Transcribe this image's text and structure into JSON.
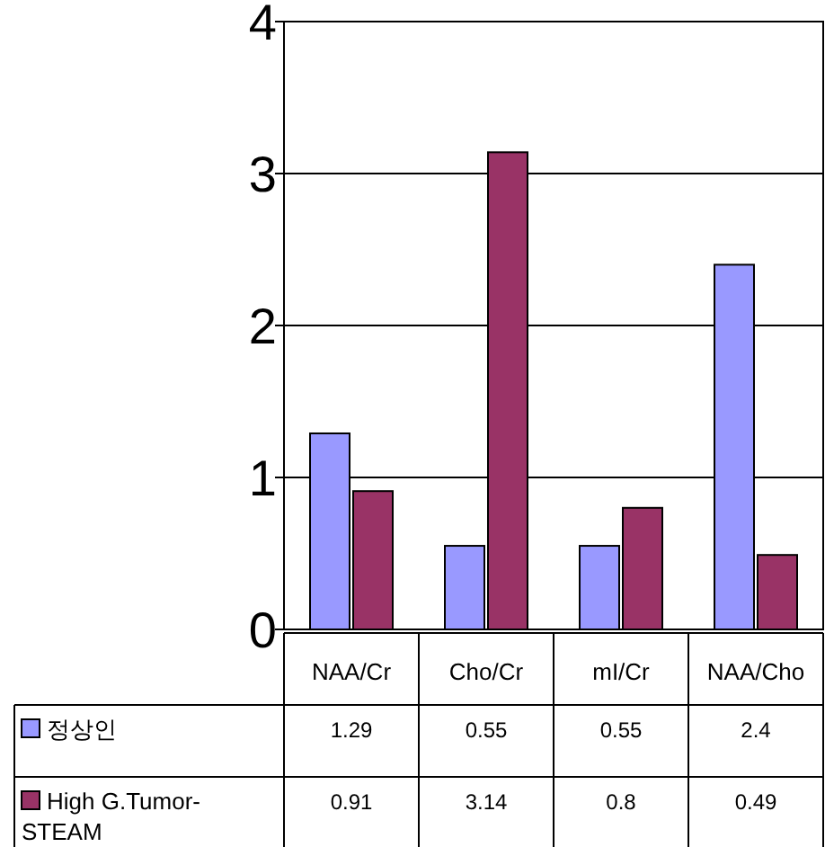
{
  "chart_data": {
    "type": "bar",
    "categories": [
      "NAA/Cr",
      "Cho/Cr",
      "mI/Cr",
      "NAA/Cho"
    ],
    "series": [
      {
        "name": "정상인",
        "color": "#9999ff",
        "values": [
          1.29,
          0.55,
          0.55,
          2.4
        ]
      },
      {
        "name": "High G.Tumor-STEAM",
        "color": "#993366",
        "values": [
          0.91,
          3.14,
          0.8,
          0.49
        ]
      }
    ],
    "ylim": [
      0,
      4
    ],
    "yticks": [
      0,
      1,
      2,
      3,
      4
    ],
    "grid": "y",
    "legend": "bottom",
    "data_labels": true
  }
}
